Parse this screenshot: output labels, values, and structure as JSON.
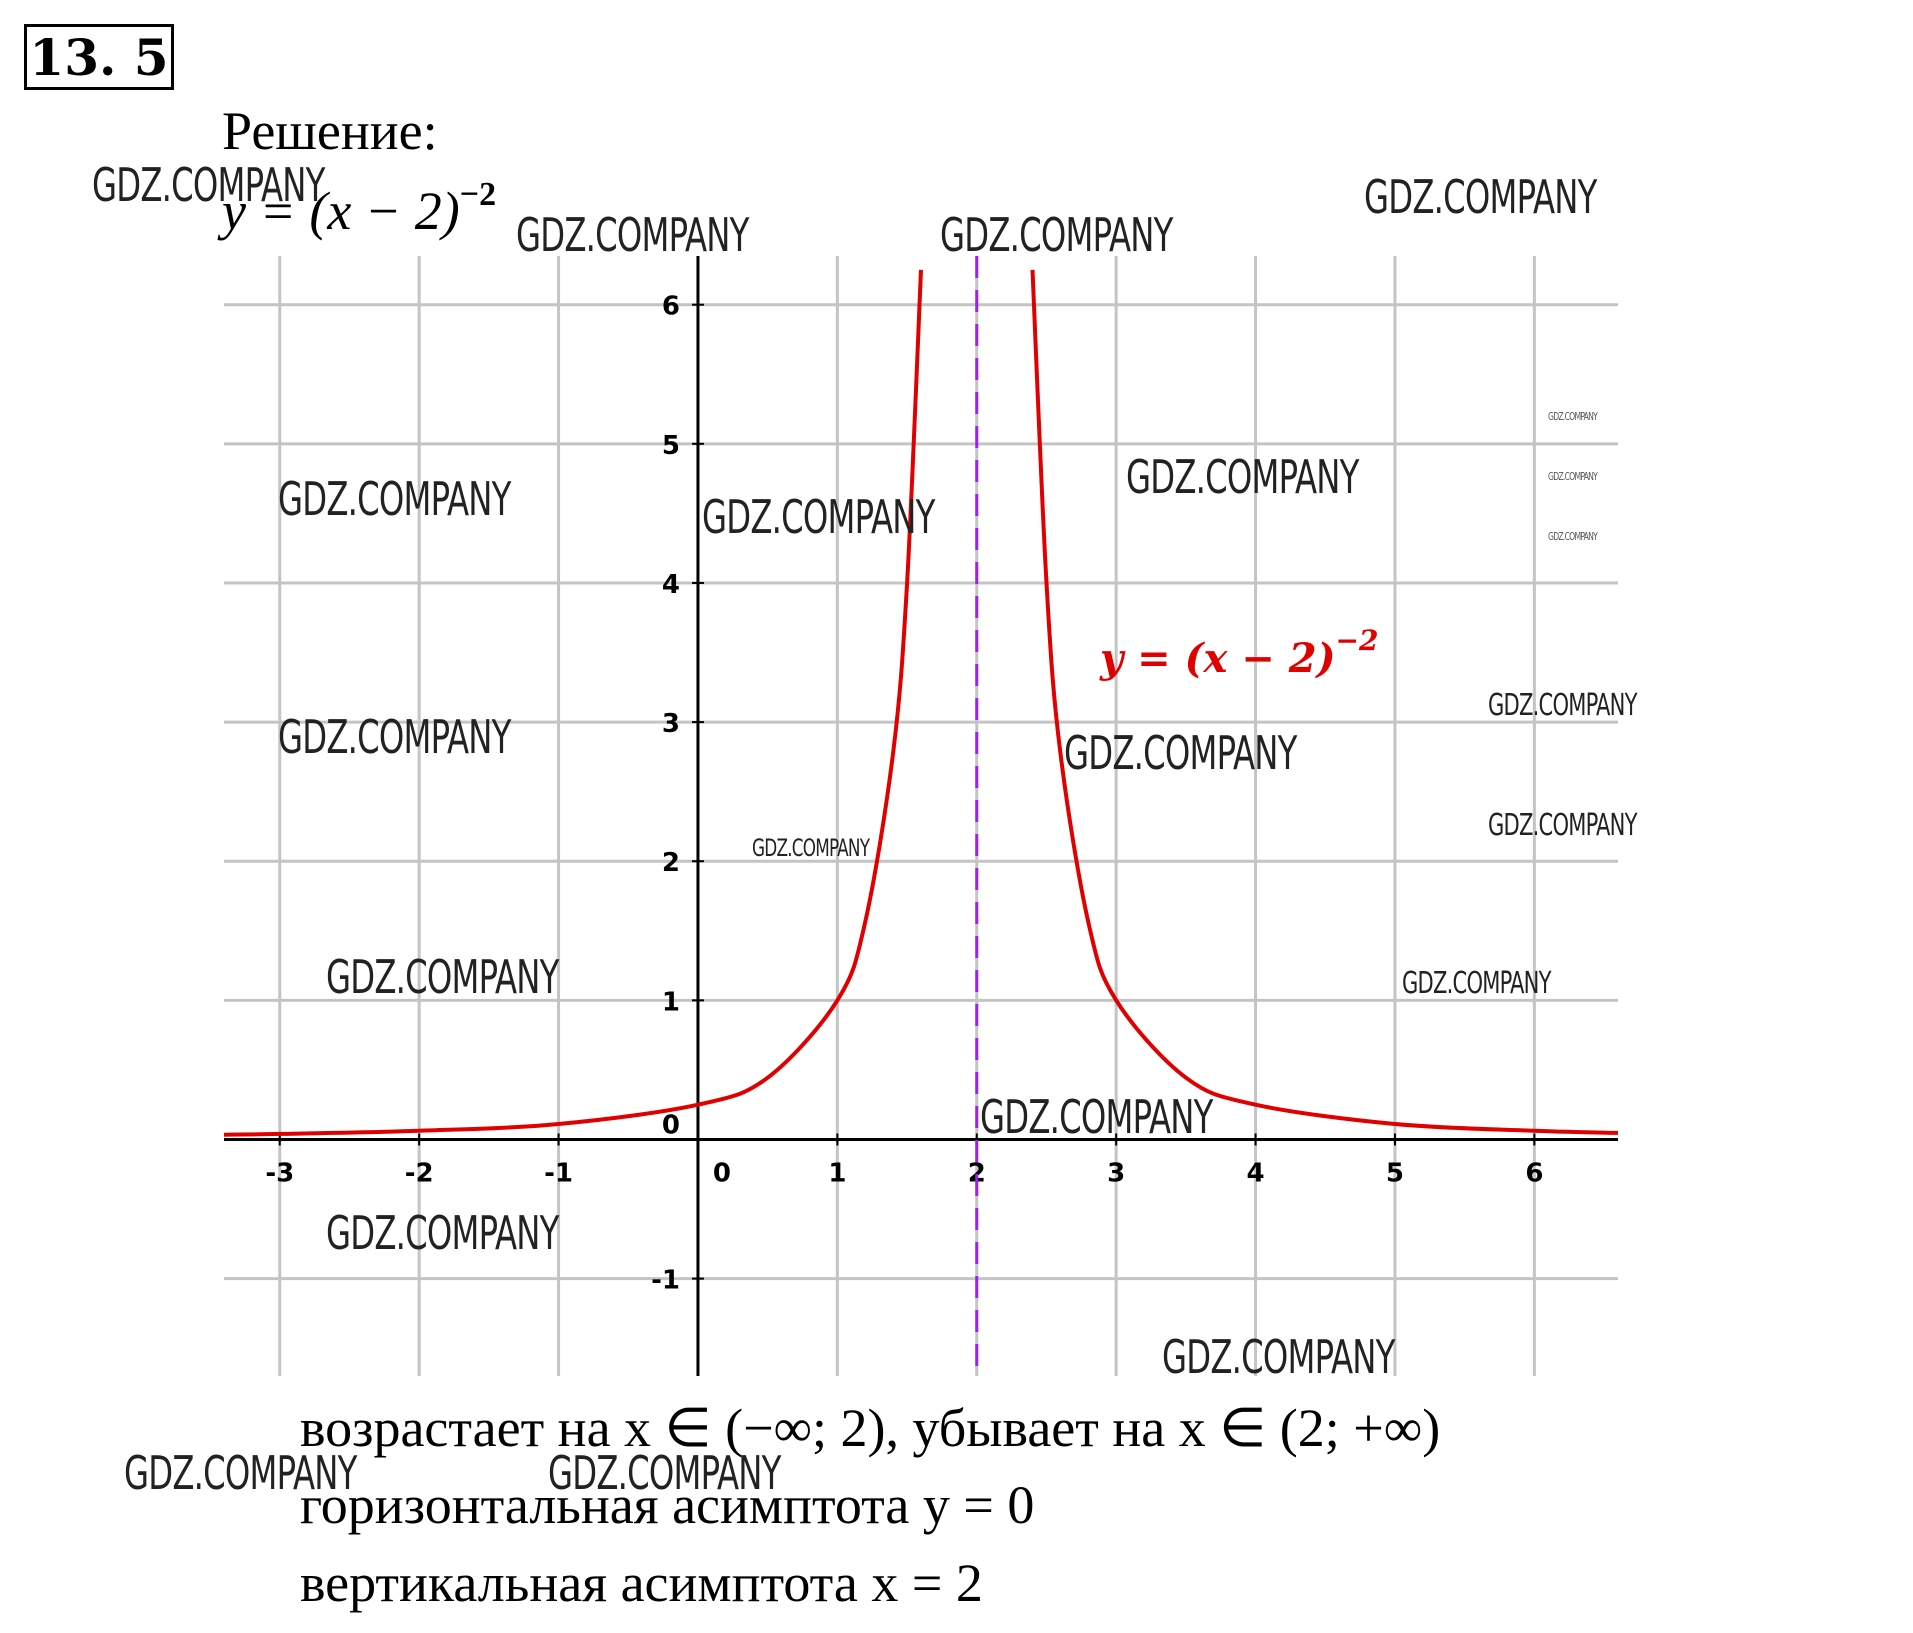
{
  "header": {
    "problem_number": "13. 5",
    "solution_label": "Решение:",
    "formula_main": "y = (x − 2)",
    "formula_exp": "−2"
  },
  "chart_data": {
    "type": "line",
    "function": "y = (x − 2)^−2",
    "series": [
      {
        "name": "y = (x − 2)^−2",
        "color": "#e00000",
        "x": [
          -3.4,
          -3,
          -2,
          -1,
          0,
          0.5,
          1,
          1.2,
          1.4,
          1.5,
          1.6,
          2.4,
          2.5,
          2.6,
          2.8,
          3,
          3.5,
          4,
          5,
          6,
          6.6
        ],
        "y": [
          0.034,
          0.04,
          0.0625,
          0.111,
          0.25,
          0.444,
          1,
          1.5625,
          2.778,
          4,
          6.25,
          6.25,
          4,
          2.778,
          1.5625,
          1,
          0.444,
          0.25,
          0.111,
          0.0625,
          0.047
        ]
      }
    ],
    "asymptotes": [
      {
        "type": "vertical",
        "x": 2,
        "color": "#a020f0",
        "style": "dashed"
      }
    ],
    "annotation": {
      "text_main": "y = (x − 2)",
      "text_exp": "−2",
      "color": "#e00000"
    },
    "xlim": [
      -3.4,
      6.6
    ],
    "ylim": [
      -1.7,
      6.35
    ],
    "x_ticks": [
      "-3",
      "-2",
      "-1",
      "0",
      "1",
      "2",
      "3",
      "4",
      "5",
      "6"
    ],
    "y_ticks": [
      "-1",
      "0",
      "1",
      "2",
      "3",
      "4",
      "5",
      "6"
    ],
    "grid": true
  },
  "conclusions": {
    "line1": "возрастает на x ∈ (−∞; 2), убывает на x ∈ (2; +∞)",
    "line2": "горизонтальная асимптота y = 0",
    "line3": "вертикальная асимптота x = 2"
  },
  "watermarks": [
    "GDZ.COMPANY"
  ]
}
